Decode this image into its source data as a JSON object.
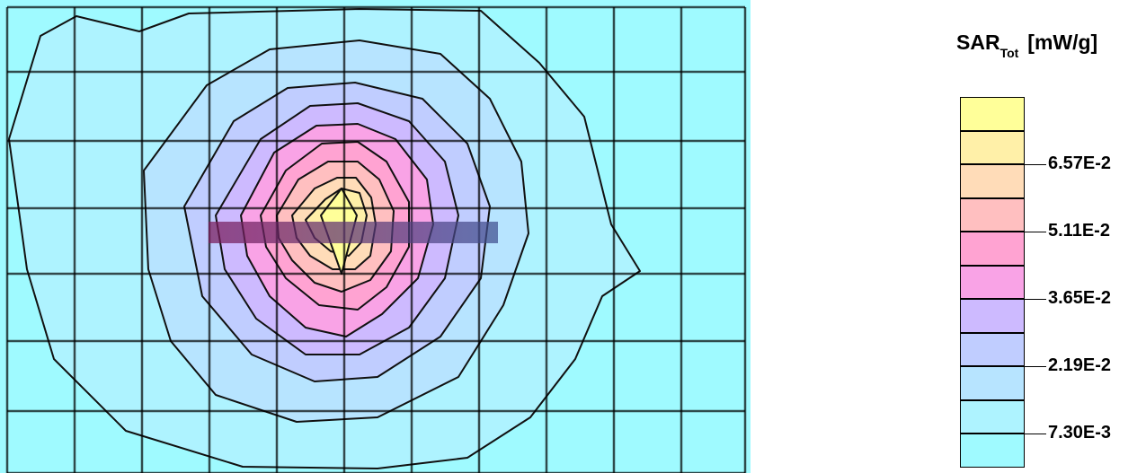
{
  "chart_data": {
    "type": "heatmap",
    "title": "SAR",
    "title_subscript": "Tot",
    "unit": "[mW/g]",
    "colorbar": {
      "colors": [
        "#ffff99",
        "#fff0a8",
        "#ffdcb8",
        "#ffbfc0",
        "#ffa3d2",
        "#f9a3e6",
        "#cdbaff",
        "#c0cdff",
        "#b7e4ff",
        "#aef3ff",
        "#9ffaff"
      ],
      "tick_labels": [
        "6.57E-2",
        "5.11E-2",
        "3.65E-2",
        "2.19E-2",
        "7.30E-3"
      ],
      "tick_values": [
        0.0657,
        0.0511,
        0.0365,
        0.0219,
        0.0073
      ]
    },
    "grid": true,
    "grid_size": {
      "cols": 11,
      "rows": 7
    },
    "background_color": "#9ffaff",
    "peak_color": "#ffff99",
    "marker_bar_colors": [
      "#7a1a5a",
      "#3f4f8f"
    ]
  }
}
